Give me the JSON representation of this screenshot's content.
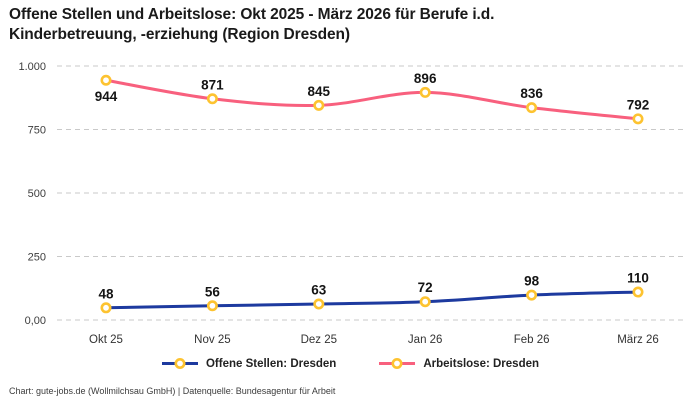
{
  "header": {
    "title_line1": "Offene Stellen und Arbeitslose: Okt 2025 - März 2026 für Berufe i.d.",
    "title_line2": "Kinderbetreuung, -erziehung (Region Dresden)"
  },
  "footer": {
    "text": "Chart: gute-jobs.de (Wollmilchsau GmbH) | Datenquelle: Bundesagentur für Arbeit"
  },
  "chart_data": {
    "type": "line",
    "title": "Offene Stellen und Arbeitslose: Okt 2025 - März 2026 für Berufe i.d. Kinderbetreuung, -erziehung (Region Dresden)",
    "categories": [
      "Okt 25",
      "Nov 25",
      "Dez 25",
      "Jan 26",
      "Feb 26",
      "März 26"
    ],
    "series": [
      {
        "name": "Offene Stellen: Dresden",
        "values": [
          48,
          56,
          63,
          72,
          98,
          110
        ],
        "color": "#1d3a9f",
        "label_positions": [
          "above",
          "above",
          "above",
          "above",
          "above",
          "above"
        ]
      },
      {
        "name": "Arbeitslose: Dresden",
        "values": [
          944,
          871,
          845,
          896,
          836,
          792
        ],
        "color": "#f8607e",
        "label_positions": [
          "below",
          "above",
          "above",
          "above",
          "above",
          "above"
        ]
      }
    ],
    "marker_color": "#fdc330",
    "marker_fill": "#ffffff",
    "ylim": [
      0,
      1000
    ],
    "yticks": [
      {
        "value": 0,
        "label": "0,00"
      },
      {
        "value": 250,
        "label": "250"
      },
      {
        "value": 500,
        "label": "500"
      },
      {
        "value": 750,
        "label": "750"
      },
      {
        "value": 1000,
        "label": "1.000"
      }
    ],
    "grid": "horizontal-dashed",
    "legend_position": "bottom-center",
    "xlabel": "",
    "ylabel": ""
  }
}
